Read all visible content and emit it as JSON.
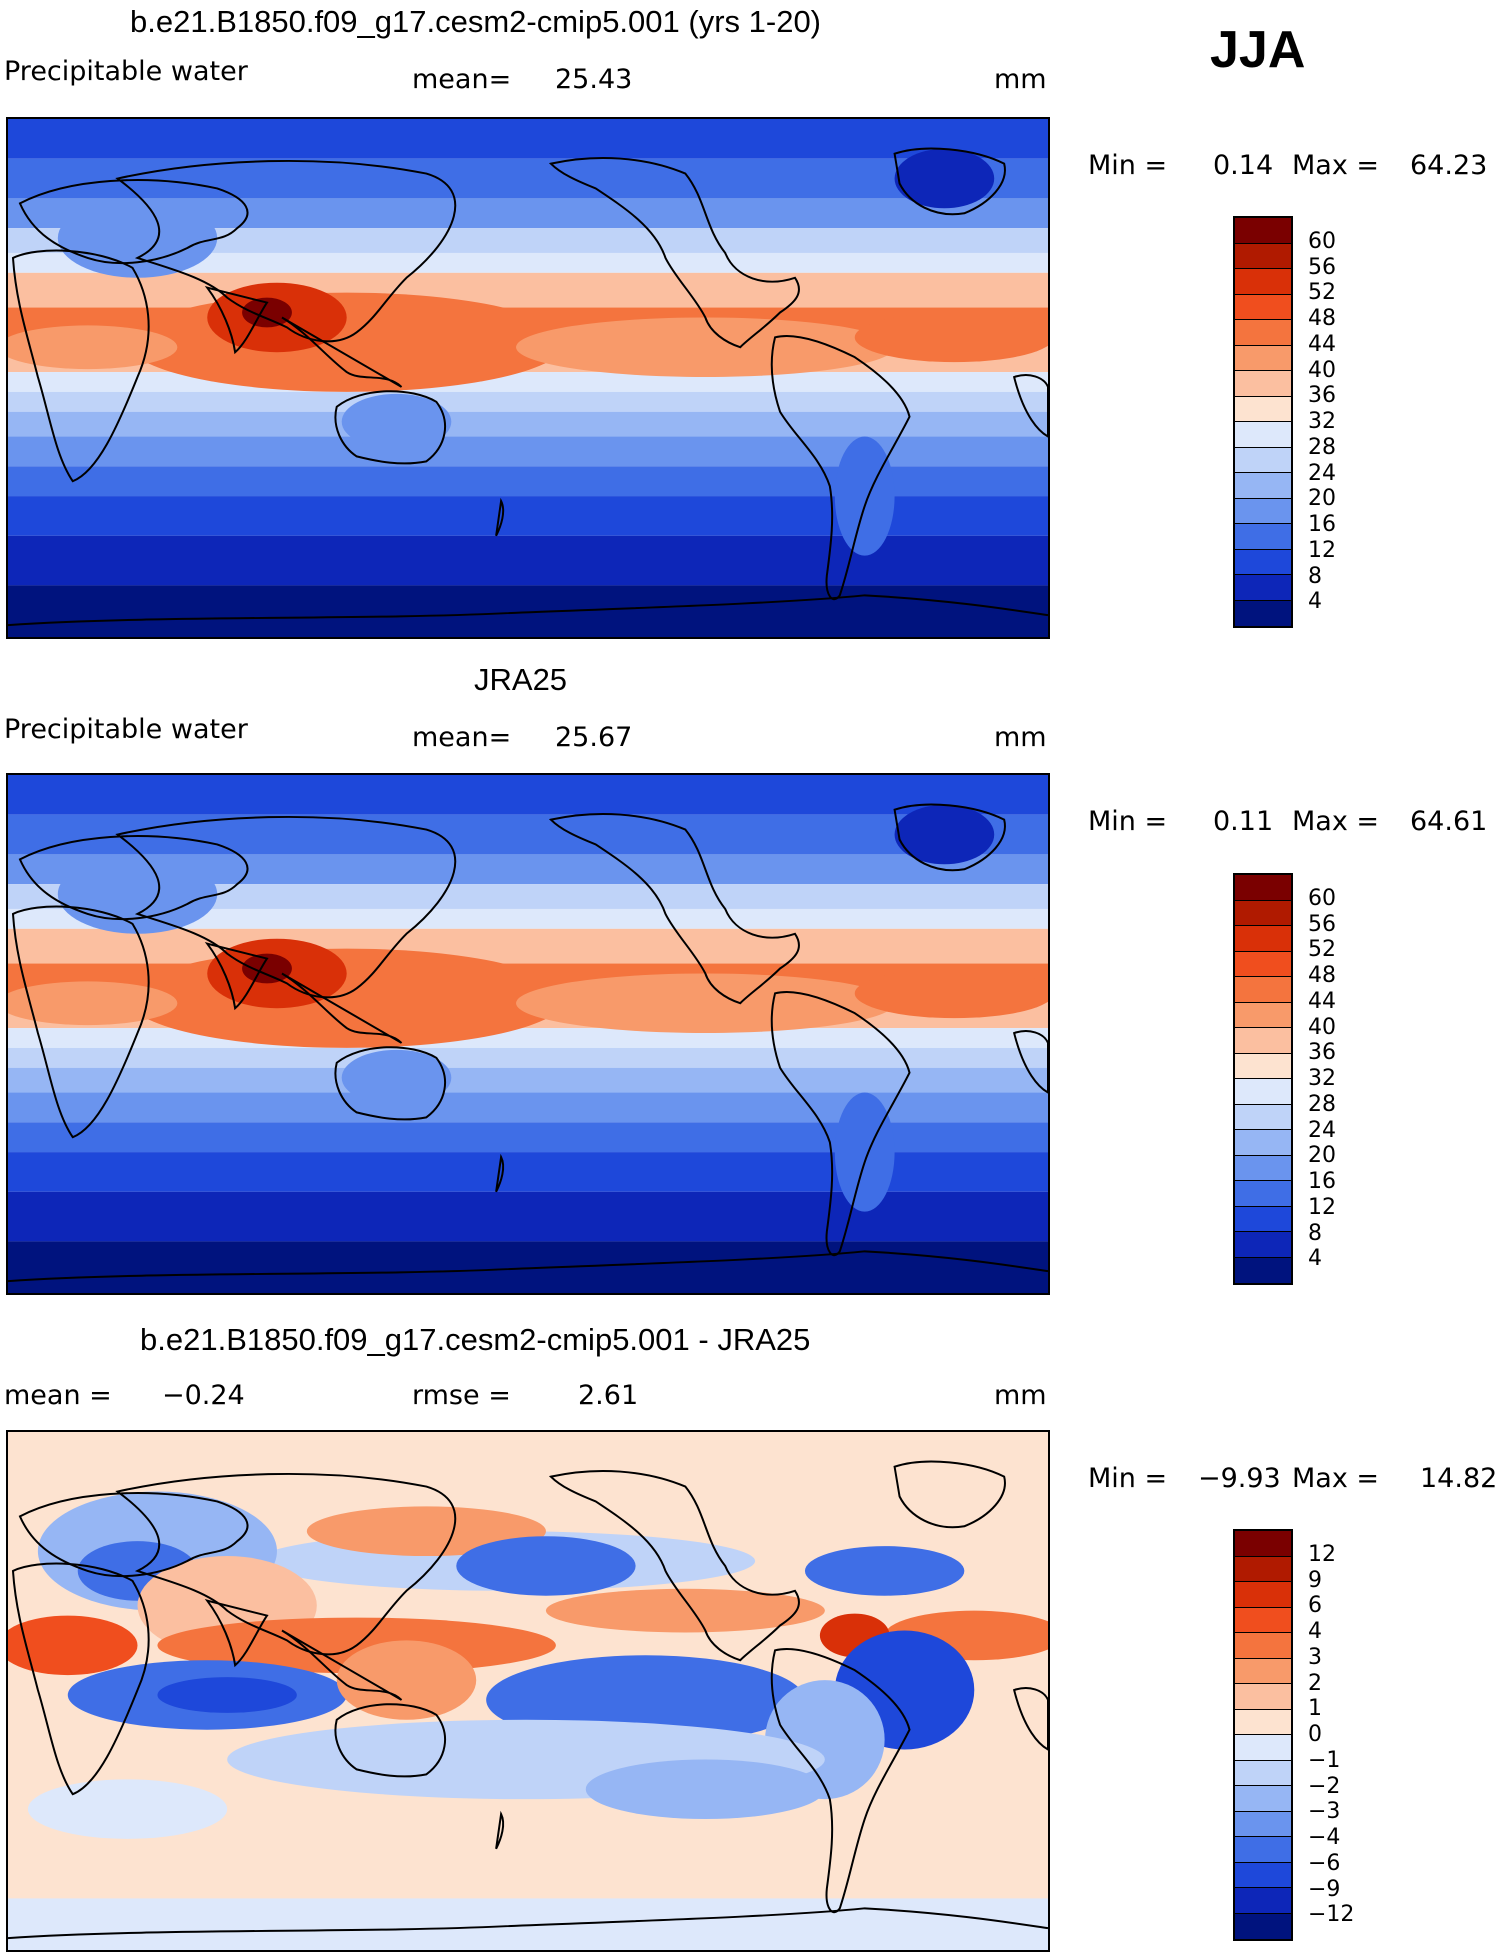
{
  "season": "JJA",
  "panels": [
    {
      "title": "b.e21.B1850.f09_g17.cesm2-cmip5.001 (yrs 1-20)",
      "variable": "Precipitable water",
      "stat_label": "mean=",
      "stat_value": "25.43",
      "units": "mm",
      "min_label": "Min =",
      "min_value": "0.14",
      "max_label": "Max =",
      "max_value": "64.23",
      "map_type": "absolute",
      "colorbar_labels": [
        "60",
        "56",
        "52",
        "48",
        "44",
        "40",
        "36",
        "32",
        "28",
        "24",
        "20",
        "16",
        "12",
        "8",
        "4"
      ]
    },
    {
      "title": "JRA25",
      "variable": "Precipitable water",
      "stat_label": "mean=",
      "stat_value": "25.67",
      "units": "mm",
      "min_label": "Min =",
      "min_value": "0.11",
      "max_label": "Max =",
      "max_value": "64.61",
      "map_type": "absolute",
      "colorbar_labels": [
        "60",
        "56",
        "52",
        "48",
        "44",
        "40",
        "36",
        "32",
        "28",
        "24",
        "20",
        "16",
        "12",
        "8",
        "4"
      ]
    },
    {
      "title": "b.e21.B1850.f09_g17.cesm2-cmip5.001 - JRA25",
      "stat_label": "mean =",
      "stat_value": "−0.24",
      "stat2_label": "rmse =",
      "stat2_value": "2.61",
      "units": "mm",
      "min_label": "Min =",
      "min_value": "−9.93",
      "max_label": "Max =",
      "max_value": "14.82",
      "map_type": "difference",
      "colorbar_labels": [
        "12",
        "9",
        "6",
        "4",
        "3",
        "2",
        "1",
        "0",
        "−1",
        "−2",
        "−3",
        "−4",
        "−6",
        "−9",
        "−12"
      ]
    }
  ],
  "colors": {
    "absolute": [
      "#7a0000",
      "#b01a00",
      "#d93008",
      "#f04e1e",
      "#f4743e",
      "#f89a6a",
      "#fbbfa0",
      "#fde3d0",
      "#dde8fb",
      "#bfd3f8",
      "#96b6f4",
      "#6a94ee",
      "#3f6ee6",
      "#1e48da",
      "#0d26b8",
      "#00137e"
    ],
    "difference": [
      "#7a0000",
      "#b01a00",
      "#d93008",
      "#f04e1e",
      "#f4743e",
      "#f89a6a",
      "#fbbfa0",
      "#fde3d0",
      "#dde8fb",
      "#bfd3f8",
      "#96b6f4",
      "#6a94ee",
      "#3f6ee6",
      "#1e48da",
      "#0d26b8",
      "#00137e"
    ]
  }
}
